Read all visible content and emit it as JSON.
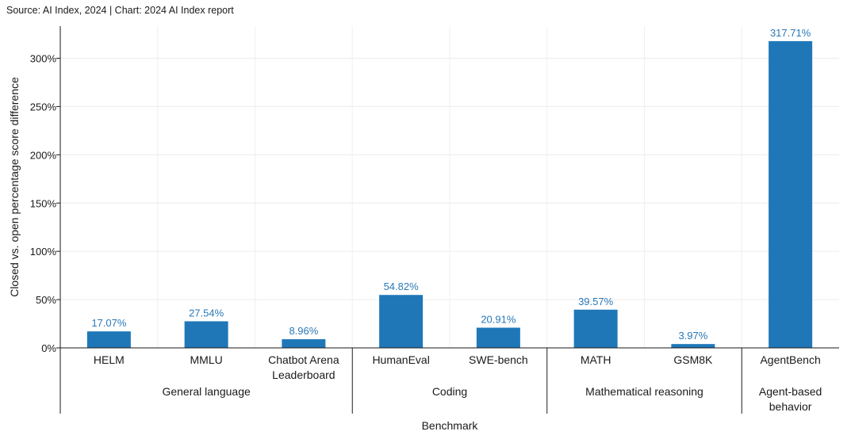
{
  "source_text": "Source: AI Index, 2024 | Chart: 2024 AI Index report",
  "chart_data": {
    "type": "bar",
    "ylabel": "Closed vs. open percentage score difference",
    "xlabel": "Benchmark",
    "ylim": [
      0,
      330
    ],
    "yticks": [
      0,
      50,
      100,
      150,
      200,
      250,
      300
    ],
    "ytick_labels": [
      "0%",
      "50%",
      "100%",
      "150%",
      "200%",
      "250%",
      "300%"
    ],
    "grid": true,
    "bar_color": "#1f77b8",
    "label_color": "#2a78b6",
    "categories": [
      {
        "label": [
          "HELM"
        ],
        "group": 0
      },
      {
        "label": [
          "MMLU"
        ],
        "group": 0
      },
      {
        "label": [
          "Chatbot Arena",
          "Leaderboard"
        ],
        "group": 0
      },
      {
        "label": [
          "HumanEval"
        ],
        "group": 1
      },
      {
        "label": [
          "SWE-bench"
        ],
        "group": 1
      },
      {
        "label": [
          "MATH"
        ],
        "group": 2
      },
      {
        "label": [
          "GSM8K"
        ],
        "group": 2
      },
      {
        "label": [
          "AgentBench"
        ],
        "group": 3
      }
    ],
    "values": [
      17.07,
      27.54,
      8.96,
      54.82,
      20.91,
      39.57,
      3.97,
      317.71
    ],
    "value_labels": [
      "17.07%",
      "27.54%",
      "8.96%",
      "54.82%",
      "20.91%",
      "39.57%",
      "3.97%",
      "317.71%"
    ],
    "groups": [
      {
        "label": [
          "General language"
        ]
      },
      {
        "label": [
          "Coding"
        ]
      },
      {
        "label": [
          "Mathematical reasoning"
        ]
      },
      {
        "label": [
          "Agent-based",
          "behavior"
        ]
      }
    ]
  }
}
